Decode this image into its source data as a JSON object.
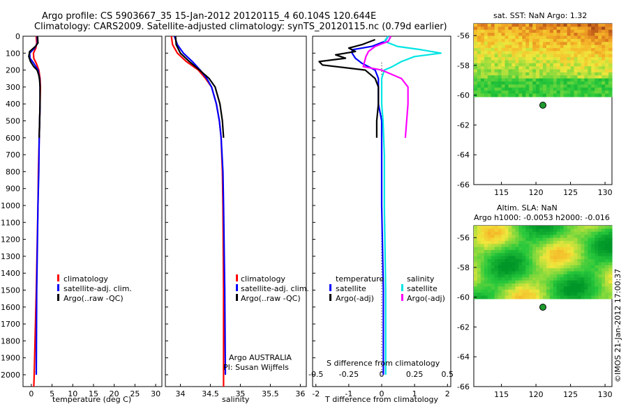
{
  "header": {
    "line1": "Argo profile: CS 5903667_35 15-Jan-2012 20120115_4 60.104S 120.644E",
    "line2": "Climatology: CARS2009. Satellite-adjusted climatology: synTS_20120115.nc (0.79d earlier)"
  },
  "colors": {
    "climatology": "#ff0000",
    "satellite": "#0000ff",
    "argo": "#000000",
    "sal_satellite": "#00e5e5",
    "sal_argo": "#ff00ff"
  },
  "depth_axis": {
    "ticks": [
      "0",
      "100",
      "200",
      "300",
      "400",
      "500",
      "600",
      "700",
      "800",
      "900",
      "1000",
      "1100",
      "1200",
      "1300",
      "1400",
      "1500",
      "1600",
      "1700",
      "1800",
      "1900",
      "2000"
    ]
  },
  "chart_data": [
    {
      "type": "line",
      "name": "temperature",
      "xlabel": "temperature (deg C)",
      "ylabel": "depth",
      "xlim": [
        -2,
        31.5
      ],
      "ylim": [
        2070,
        0
      ],
      "xticks": [
        "0",
        "5",
        "10",
        "15",
        "20",
        "25",
        "30"
      ],
      "legend": [
        "climatology",
        "satellite-adj. clim.",
        "Argo(..raw -QC)"
      ],
      "series": [
        {
          "name": "climatology",
          "depth": [
            0,
            40,
            70,
            100,
            130,
            160,
            200,
            250,
            300,
            400,
            500,
            600,
            800,
            1000,
            1500,
            2000,
            2070
          ],
          "values": [
            1.2,
            1.3,
            1.1,
            0.5,
            0.6,
            1.2,
            1.8,
            2.1,
            2.2,
            2.1,
            2.0,
            1.9,
            1.7,
            1.6,
            1.2,
            0.7,
            0.6
          ]
        },
        {
          "name": "satellite-adj. clim.",
          "depth": [
            0,
            40,
            70,
            100,
            130,
            160,
            200,
            250,
            300,
            400,
            500,
            600,
            800,
            1000,
            1500,
            2000
          ],
          "values": [
            1.4,
            1.5,
            0.8,
            -0.4,
            -0.3,
            0.6,
            1.6,
            2.0,
            2.1,
            2.1,
            2.0,
            1.9,
            1.8,
            1.6,
            1.3,
            1.2
          ]
        },
        {
          "name": "Argo(..raw -QC)",
          "depth": [
            0,
            40,
            60,
            90,
            120,
            150,
            180,
            200,
            230,
            260,
            300,
            400,
            500,
            600
          ],
          "values": [
            1.5,
            1.6,
            1.0,
            -0.4,
            -0.6,
            -0.2,
            0.6,
            1.4,
            1.8,
            2.0,
            2.1,
            2.1,
            2.0,
            1.9
          ]
        }
      ]
    },
    {
      "type": "line",
      "name": "salinity",
      "xlabel": "salinity",
      "ylabel": "depth",
      "xlim": [
        33.75,
        36.1
      ],
      "ylim": [
        2070,
        0
      ],
      "xticks": [
        "34",
        "34.5",
        "35",
        "35.5",
        "36"
      ],
      "legend": [
        "climatology",
        "satellite-adj. clim.",
        "Argo(..raw -QC)"
      ],
      "annotation": [
        "Argo AUSTRALIA",
        "PI: Susan Wijffels"
      ],
      "series": [
        {
          "name": "climatology",
          "depth": [
            0,
            50,
            100,
            150,
            200,
            250,
            300,
            400,
            500,
            600,
            800,
            1000,
            1500,
            2000,
            2070
          ],
          "values": [
            33.85,
            33.87,
            33.95,
            34.1,
            34.3,
            34.42,
            34.52,
            34.6,
            34.65,
            34.68,
            34.7,
            34.71,
            34.72,
            34.72,
            34.72
          ]
        },
        {
          "name": "satellite-adj. clim.",
          "depth": [
            0,
            50,
            100,
            150,
            200,
            250,
            300,
            400,
            500,
            600,
            800,
            1000,
            1500,
            2000
          ],
          "values": [
            33.9,
            33.95,
            34.05,
            34.2,
            34.33,
            34.44,
            34.52,
            34.6,
            34.65,
            34.68,
            34.71,
            34.72,
            34.74,
            34.75
          ]
        },
        {
          "name": "Argo(..raw -QC)",
          "depth": [
            0,
            50,
            100,
            150,
            200,
            250,
            300,
            400,
            500,
            600
          ],
          "values": [
            33.92,
            33.93,
            34.0,
            34.15,
            34.32,
            34.48,
            34.58,
            34.66,
            34.7,
            34.72
          ]
        }
      ]
    },
    {
      "type": "line",
      "name": "difference",
      "xlabel": "T difference from climatology",
      "xlabel_top": "S difference from climatology",
      "xlim": [
        -2.1,
        2.1
      ],
      "ylim": [
        2070,
        0
      ],
      "xticks": [
        "-2",
        "-1",
        "0",
        "1",
        "2"
      ],
      "xticks_top": [
        "-0.5",
        "-0.25",
        "0",
        "0.25",
        "0.5"
      ],
      "legend_headers": [
        "temperature",
        "salinity"
      ],
      "legend": [
        "satellite",
        "Argo(-adj)",
        "satellite",
        "Argo(-adj)"
      ],
      "series": [
        {
          "name": "temperature satellite",
          "depth": [
            0,
            30,
            60,
            80,
            100,
            130,
            160,
            200,
            250,
            300,
            400,
            500,
            700,
            1000,
            1500,
            2000
          ],
          "values": [
            0.2,
            0.1,
            -0.3,
            -0.9,
            -0.9,
            -0.8,
            -0.6,
            -0.2,
            -0.1,
            -0.1,
            -0.1,
            0.0,
            0.0,
            0.0,
            0.05,
            0.05
          ]
        },
        {
          "name": "temperature Argo(-adj)",
          "depth": [
            20,
            50,
            70,
            90,
            110,
            130,
            150,
            170,
            200,
            250,
            300,
            400,
            500,
            600
          ],
          "values": [
            -0.2,
            -0.6,
            -1.0,
            -0.8,
            -1.4,
            -1.1,
            -1.9,
            -1.8,
            -0.5,
            -0.2,
            -0.1,
            -0.1,
            -0.15,
            -0.15
          ]
        },
        {
          "name": "salinity satellite",
          "depth": [
            0,
            30,
            60,
            80,
            100,
            120,
            150,
            180,
            200,
            250,
            300,
            400,
            500,
            700,
            1000,
            1500,
            2000
          ],
          "values": [
            0.05,
            0.02,
            0.12,
            0.3,
            0.45,
            0.25,
            0.15,
            0.08,
            0.02,
            0.0,
            0.0,
            0.0,
            0.01,
            0.02,
            0.02,
            0.03,
            0.03
          ]
        },
        {
          "name": "salinity Argo(-adj)",
          "depth": [
            0,
            30,
            60,
            90,
            120,
            150,
            180,
            200,
            250,
            300,
            400,
            500,
            600
          ],
          "values": [
            0.07,
            0.05,
            -0.05,
            -0.1,
            -0.12,
            -0.13,
            -0.14,
            0.0,
            0.15,
            0.2,
            0.2,
            0.19,
            0.18
          ]
        }
      ]
    },
    {
      "type": "heatmap",
      "name": "sst-map",
      "title": "sat. SST: NaN Argo: 1.32",
      "xlim": [
        111,
        131
      ],
      "ylim": [
        -66,
        -55.2
      ],
      "xticks": [
        "115",
        "120",
        "125",
        "130"
      ],
      "yticks": [
        "-56",
        "-58",
        "-60",
        "-62",
        "-64",
        "-66"
      ],
      "data_bottom_lat": -60.1,
      "marker": {
        "lon": 120.644,
        "lat": -60.104
      }
    },
    {
      "type": "heatmap",
      "name": "sla-map",
      "title": "Altim. SLA: NaN",
      "subtitle": "Argo h1000: -0.0053 h2000: -0.016",
      "xlim": [
        111,
        131
      ],
      "ylim": [
        -66,
        -55.2
      ],
      "xticks": [
        "115",
        "120",
        "125",
        "130"
      ],
      "yticks": [
        "-56",
        "-58",
        "-60",
        "-62",
        "-64",
        "-66"
      ],
      "data_bottom_lat": -60.1,
      "marker": {
        "lon": 120.644,
        "lat": -60.104
      }
    }
  ],
  "watermark": "©IMOS 21-Jan-2012 17:00:37"
}
